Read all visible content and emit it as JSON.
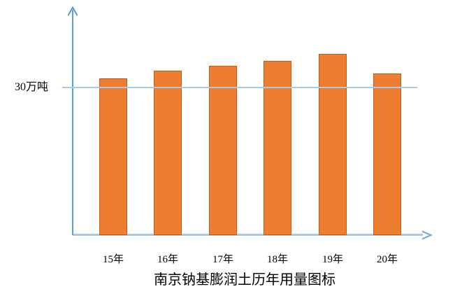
{
  "chart_data": {
    "type": "bar",
    "title": "南京钠基膨润土历年用量图标",
    "categories": [
      "15年",
      "16年",
      "17年",
      "18年",
      "19年",
      "20年"
    ],
    "values": [
      31.5,
      33,
      34,
      35,
      36.5,
      32.5
    ],
    "unit": "万吨",
    "xlabel": "",
    "ylabel": "",
    "ylim": [
      0,
      46
    ],
    "reference_line": {
      "value": 30,
      "label": "30万吨"
    },
    "grid": "off",
    "legend": "none",
    "notes": "single series; only labeled tick is the 30万吨 reference line, which is drawn across the bars; axes end in open arrowheads",
    "colors": {
      "bar_fill": "#ED7D31",
      "bar_border": "#C55A11",
      "y_axis": "#5B9BD5",
      "x_axis": "#A6C9E8",
      "reference_line": "#A6C9E8",
      "arrow": "#6FA1D9",
      "text": "#000000"
    }
  }
}
